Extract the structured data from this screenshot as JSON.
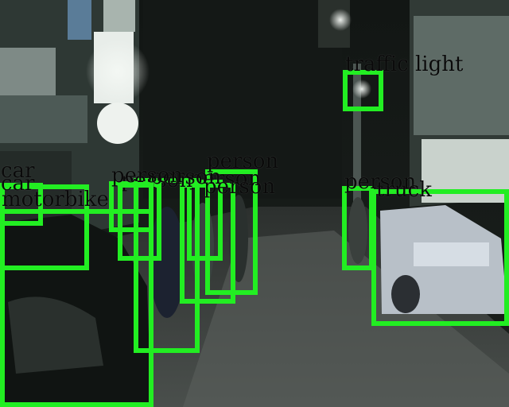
{
  "colors": {
    "box": "#22ee22",
    "label": "#0a0a0a"
  },
  "detections": [
    {
      "label": "traffic light"
    },
    {
      "label": "person"
    },
    {
      "label": "truck"
    },
    {
      "label": "person"
    },
    {
      "label": "person"
    },
    {
      "label": "person"
    },
    {
      "label": "person"
    },
    {
      "label": "person"
    },
    {
      "label": "person"
    },
    {
      "label": "car"
    },
    {
      "label": "car"
    },
    {
      "label": "motorbike"
    }
  ]
}
